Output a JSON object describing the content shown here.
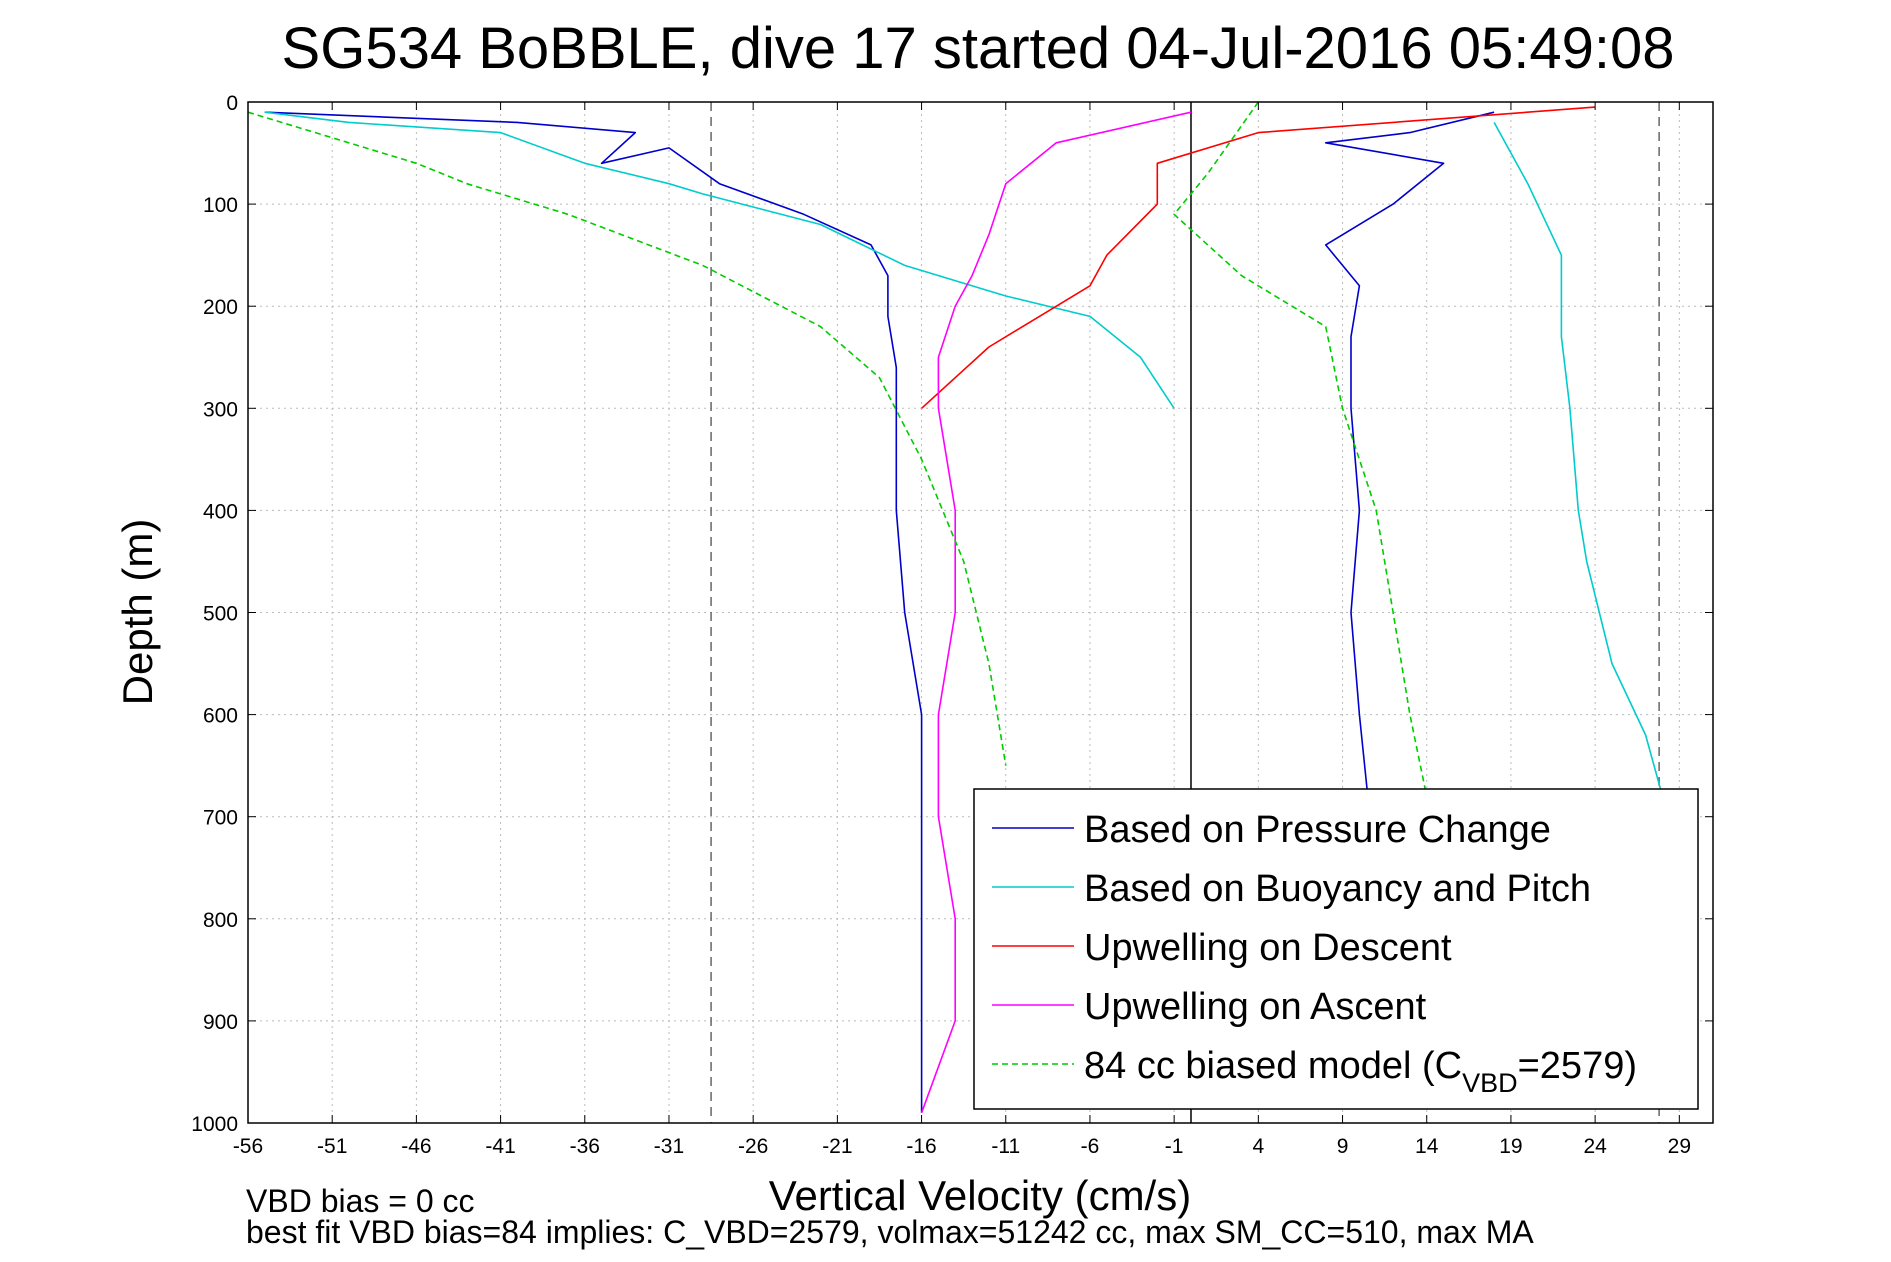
{
  "chart_data": {
    "type": "line",
    "title": "SG534 BoBBLE, dive 17 started 04-Jul-2016 05:49:08",
    "xlabel": "Vertical Velocity (cm/s)",
    "ylabel": "Depth (m)",
    "xlim": [
      -56,
      31
    ],
    "ylim": [
      0,
      1000
    ],
    "y_reversed": true,
    "grid": true,
    "x_ticks": [
      -56,
      -51,
      -46,
      -41,
      -36,
      -31,
      -26,
      -21,
      -16,
      -11,
      -6,
      -1,
      4,
      9,
      14,
      19,
      24,
      29
    ],
    "y_ticks": [
      0,
      100,
      200,
      300,
      400,
      500,
      600,
      700,
      800,
      900,
      1000
    ],
    "reference_lines": [
      {
        "x": -28.5,
        "style": "dashed",
        "color": "#666666"
      },
      {
        "x": 0,
        "style": "solid",
        "color": "#000000"
      },
      {
        "x": 27.8,
        "style": "dashed",
        "color": "#666666"
      }
    ],
    "legend_position": "bottom-right",
    "series": [
      {
        "name": "Based on Pressure Change",
        "color": "#0000cc",
        "style": "solid",
        "segments": [
          {
            "x": [
              -55,
              -40,
              -33,
              -35,
              -31,
              -28,
              -23,
              -19,
              -18,
              -18,
              -17.5,
              -17.5,
              -17.5,
              -17,
              -16,
              -16,
              -16,
              -16,
              -16,
              -16
            ],
            "y": [
              10,
              20,
              30,
              60,
              45,
              80,
              110,
              140,
              170,
              210,
              260,
              300,
              400,
              500,
              600,
              700,
              800,
              900,
              950,
              990
            ]
          },
          {
            "x": [
              18,
              13,
              8,
              15,
              12,
              8,
              10,
              9.5,
              9.5,
              10,
              9.5,
              10,
              10.5
            ],
            "y": [
              10,
              30,
              40,
              60,
              100,
              140,
              180,
              230,
              300,
              400,
              500,
              600,
              680
            ]
          }
        ]
      },
      {
        "name": "Based on Buoyancy and Pitch",
        "color": "#00cccc",
        "style": "solid",
        "segments": [
          {
            "x": [
              -55,
              -50,
              -41,
              -36,
              -31,
              -29,
              -22,
              -17,
              -11,
              -6,
              -3,
              -1
            ],
            "y": [
              10,
              20,
              30,
              60,
              80,
              90,
              120,
              160,
              190,
              210,
              250,
              300
            ]
          },
          {
            "x": [
              18,
              20,
              22,
              22,
              22.5,
              23,
              23.5,
              25,
              27,
              28
            ],
            "y": [
              20,
              80,
              150,
              230,
              300,
              400,
              450,
              550,
              620,
              680
            ]
          }
        ]
      },
      {
        "name": "Upwelling on Descent",
        "color": "#ff0000",
        "style": "solid",
        "segments": [
          {
            "x": [
              24,
              4,
              -2,
              -2,
              -5,
              -6,
              -9,
              -12,
              -14,
              -16
            ],
            "y": [
              5,
              30,
              60,
              100,
              150,
              180,
              210,
              240,
              270,
              300
            ]
          }
        ]
      },
      {
        "name": "Upwelling on Ascent",
        "color": "#ff00ff",
        "style": "solid",
        "segments": [
          {
            "x": [
              0,
              -8,
              -11,
              -12,
              -13,
              -14,
              -15,
              -15,
              -14,
              -14,
              -15,
              -15,
              -14,
              -14,
              -16
            ],
            "y": [
              10,
              40,
              80,
              130,
              170,
              200,
              250,
              300,
              400,
              500,
              600,
              700,
              800,
              900,
              990
            ]
          }
        ]
      },
      {
        "name": "84 cc biased model (C",
        "name_subscript": "VBD",
        "name_suffix": "=2579)",
        "color": "#00cc00",
        "style": "dashed",
        "segments": [
          {
            "x": [
              -56,
              -46,
              -43,
              -37,
              -29,
              -22,
              -18.5,
              -16,
              -13.5,
              -12,
              -11
            ],
            "y": [
              10,
              60,
              80,
              110,
              160,
              220,
              270,
              350,
              450,
              550,
              650
            ]
          },
          {
            "x": [
              4,
              1,
              -1,
              3,
              6,
              8,
              9,
              11,
              12,
              13,
              14
            ],
            "y": [
              0,
              70,
              110,
              170,
              200,
              220,
              300,
              400,
              500,
              600,
              680
            ]
          }
        ]
      }
    ],
    "footer_lines": [
      "VBD bias = 0 cc",
      "best fit VBD bias=84 implies: C_VBD=2579, volmax=51242 cc, max SM_CC=510, max MA"
    ]
  }
}
